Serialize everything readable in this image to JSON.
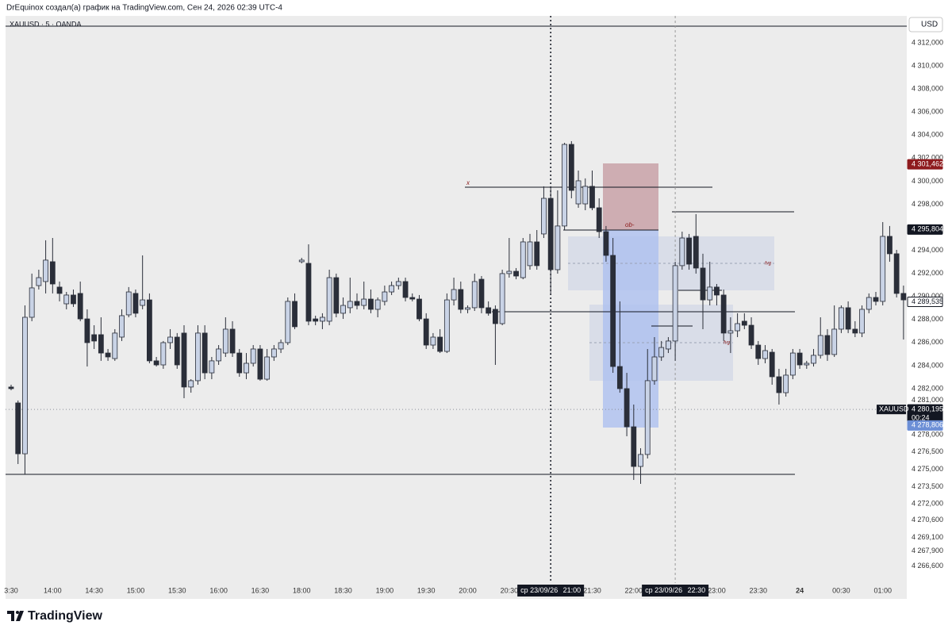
{
  "header": "DrEquinox создал(а) график на TradingView.com, Сен 24, 2026 02:39 UTC-4",
  "footer": "TradingView",
  "chart_data": {
    "type": "candlestick",
    "symbol": "XAUUSD · 5 · OANDA",
    "currency": "USD",
    "up_color": "#c9d3e6",
    "down_color": "#2a2e39",
    "grid": false,
    "ylim": [
      4263.76,
      4314.34
    ],
    "yticks": [
      {
        "value": 4312,
        "label": "4 312,000"
      },
      {
        "value": 4310,
        "label": "4 310,000"
      },
      {
        "value": 4308,
        "label": "4 308,000"
      },
      {
        "value": 4306,
        "label": "4 306,000"
      },
      {
        "value": 4304,
        "label": "4 304,000"
      },
      {
        "value": 4302,
        "label": "4 302,000"
      },
      {
        "value": 4300,
        "label": "4 300,000"
      },
      {
        "value": 4298,
        "label": "4 298,000"
      },
      {
        "value": 4294,
        "label": "4 294,000"
      },
      {
        "value": 4292,
        "label": "4 292,000"
      },
      {
        "value": 4290,
        "label": "4 290,000"
      },
      {
        "value": 4288,
        "label": "4 288,000"
      },
      {
        "value": 4286,
        "label": "4 286,000"
      },
      {
        "value": 4284,
        "label": "4 284,000"
      },
      {
        "value": 4282,
        "label": "4 282,000"
      },
      {
        "value": 4281,
        "label": "4 281,000"
      },
      {
        "value": 4278,
        "label": "4 278,000"
      },
      {
        "value": 4276.5,
        "label": "4 276,500"
      },
      {
        "value": 4275,
        "label": "4 275,000"
      },
      {
        "value": 4273.5,
        "label": "4 273,500"
      },
      {
        "value": 4272,
        "label": "4 272,000"
      },
      {
        "value": 4270.6,
        "label": "4 270,600"
      },
      {
        "value": 4269.1,
        "label": "4 269,100"
      },
      {
        "value": 4267.9,
        "label": "4 267,900"
      },
      {
        "value": 4266.6,
        "label": "4 266,600"
      }
    ],
    "price_labels": [
      {
        "value": 4301.462,
        "label": "4 301,462",
        "color": "#8e1b1e"
      },
      {
        "value": 4295.804,
        "label": "4 295,804",
        "color": "#131722"
      },
      {
        "value": 4289.535,
        "label": "4 289,535",
        "color": "#ffffff"
      },
      {
        "value": 4280.195,
        "label": "4 280,195",
        "color": "#131722"
      },
      {
        "value": 4278.806,
        "label": "4 278,806",
        "color": "#6c8fd6"
      }
    ],
    "last_price_symbol": "XAUUSD",
    "countdown": "00:24",
    "crosshairs": [
      {
        "date": "ср 23/09/26",
        "time": "21:00"
      },
      {
        "date": "ср 23/09/26",
        "time": "22:30"
      }
    ],
    "annotations": [
      "x",
      "ob-",
      "fvg",
      "fvg"
    ],
    "categories": [
      "3:30",
      null,
      null,
      null,
      null,
      null,
      "14:00",
      null,
      null,
      null,
      null,
      null,
      "14:30",
      null,
      null,
      null,
      null,
      null,
      "15:00",
      null,
      null,
      null,
      null,
      null,
      "15:30",
      null,
      null,
      null,
      null,
      null,
      "16:00",
      null,
      null,
      null,
      null,
      null,
      "16:30",
      null,
      null,
      null,
      null,
      null,
      "18:00",
      null,
      null,
      null,
      null,
      null,
      "18:30",
      null,
      null,
      null,
      null,
      null,
      "19:00",
      null,
      null,
      null,
      null,
      null,
      "19:30",
      null,
      null,
      null,
      null,
      null,
      "20:00",
      null,
      null,
      null,
      null,
      null,
      "20:30",
      null,
      null,
      null,
      null,
      null,
      null,
      null,
      null,
      null,
      null,
      null,
      "21:30",
      null,
      null,
      null,
      null,
      null,
      "22:00",
      null,
      null,
      null,
      null,
      null,
      null,
      null,
      null,
      null,
      null,
      null,
      "23:00",
      null,
      null,
      null,
      null,
      null,
      "23:30",
      null,
      null,
      null,
      null,
      null,
      "24",
      null,
      null,
      null,
      null,
      null,
      "00:30",
      null,
      null,
      null,
      null,
      null,
      "01:00",
      null,
      null,
      null
    ],
    "ohlc": [
      [
        4282.14,
        4282.34,
        4281.86,
        4282.0
      ],
      [
        4280.76,
        4280.97,
        4275.46,
        4276.35
      ],
      [
        4276.35,
        4289.22,
        4274.57,
        4288.19
      ],
      [
        4288.19,
        4291.98,
        4287.85,
        4290.74
      ],
      [
        4290.94,
        4292.32,
        4290.6,
        4291.63
      ],
      [
        4291.29,
        4294.87,
        4290.26,
        4293.15
      ],
      [
        4293.01,
        4295.07,
        4290.26,
        4291.08
      ],
      [
        4290.81,
        4291.29,
        4289.57,
        4290.26
      ],
      [
        4289.36,
        4290.39,
        4288.88,
        4290.12
      ],
      [
        4290.12,
        4290.6,
        4289.09,
        4289.36
      ],
      [
        4290.26,
        4291.29,
        4287.85,
        4288.05
      ],
      [
        4288.05,
        4288.88,
        4283.92,
        4285.99
      ],
      [
        4286.68,
        4287.5,
        4285.44,
        4286.13
      ],
      [
        4286.68,
        4288.19,
        4284.41,
        4285.09
      ],
      [
        4285.09,
        4285.44,
        4284.41,
        4284.75
      ],
      [
        4284.61,
        4287.16,
        4284.41,
        4286.82
      ],
      [
        4286.47,
        4288.88,
        4286.13,
        4288.33
      ],
      [
        4288.4,
        4290.81,
        4288.19,
        4290.39
      ],
      [
        4290.26,
        4290.6,
        4288.19,
        4288.54
      ],
      [
        4289.22,
        4293.56,
        4288.88,
        4289.7
      ],
      [
        4289.7,
        4290.26,
        4284.2,
        4284.41
      ],
      [
        4284.41,
        4284.75,
        4283.92,
        4284.06
      ],
      [
        4284.06,
        4286.13,
        4283.72,
        4285.99
      ],
      [
        4285.99,
        4287.16,
        4285.44,
        4286.47
      ],
      [
        4286.47,
        4286.82,
        4283.72,
        4284.06
      ],
      [
        4286.82,
        4287.5,
        4281.17,
        4282.14
      ],
      [
        4282.14,
        4282.82,
        4281.65,
        4282.69
      ],
      [
        4282.69,
        4287.5,
        4282.34,
        4286.82
      ],
      [
        4286.82,
        4287.5,
        4282.82,
        4283.37
      ],
      [
        4283.37,
        4284.75,
        4282.82,
        4284.41
      ],
      [
        4284.41,
        4285.78,
        4284.06,
        4285.44
      ],
      [
        4285.09,
        4288.19,
        4284.75,
        4287.16
      ],
      [
        4287.16,
        4287.85,
        4284.75,
        4285.09
      ],
      [
        4285.09,
        4285.44,
        4283.03,
        4283.37
      ],
      [
        4283.37,
        4285.09,
        4282.82,
        4284.2
      ],
      [
        4284.2,
        4285.78,
        4283.92,
        4285.44
      ],
      [
        4285.44,
        4285.78,
        4282.69,
        4282.82
      ],
      [
        4282.82,
        4285.44,
        4282.69,
        4284.75
      ],
      [
        4284.75,
        4285.78,
        4284.41,
        4285.44
      ],
      [
        4285.44,
        4286.26,
        4285.09,
        4285.99
      ],
      [
        4285.99,
        4289.91,
        4285.78,
        4289.57
      ],
      [
        4289.57,
        4290.26,
        4287.16,
        4287.37
      ],
      [
        4293.01,
        4293.35,
        4292.87,
        4293.15
      ],
      [
        4292.87,
        4294.52,
        4287.5,
        4287.85
      ],
      [
        4288.05,
        4288.33,
        4287.5,
        4287.85
      ],
      [
        4287.85,
        4288.54,
        4287.16,
        4288.19
      ],
      [
        4287.85,
        4292.32,
        4287.5,
        4291.63
      ],
      [
        4291.63,
        4291.98,
        4288.19,
        4288.54
      ],
      [
        4288.54,
        4289.91,
        4288.05,
        4289.22
      ],
      [
        4289.02,
        4291.63,
        4288.54,
        4289.57
      ],
      [
        4289.57,
        4290.26,
        4288.88,
        4289.22
      ],
      [
        4289.22,
        4291.29,
        4288.88,
        4289.77
      ],
      [
        4289.77,
        4290.6,
        4288.54,
        4288.88
      ],
      [
        4288.88,
        4289.91,
        4288.19,
        4289.7
      ],
      [
        4289.57,
        4290.94,
        4289.22,
        4290.39
      ],
      [
        4290.39,
        4291.29,
        4290.12,
        4290.94
      ],
      [
        4290.94,
        4291.63,
        4290.6,
        4291.29
      ],
      [
        4291.29,
        4291.63,
        4289.57,
        4289.91
      ],
      [
        4289.91,
        4290.26,
        4289.57,
        4289.77
      ],
      [
        4289.77,
        4290.12,
        4287.85,
        4288.05
      ],
      [
        4288.05,
        4288.54,
        4285.44,
        4285.78
      ],
      [
        4285.78,
        4286.82,
        4285.44,
        4286.47
      ],
      [
        4286.47,
        4287.16,
        4285.09,
        4285.23
      ],
      [
        4285.23,
        4290.26,
        4285.09,
        4289.7
      ],
      [
        4289.7,
        4291.63,
        4289.22,
        4290.6
      ],
      [
        4290.6,
        4291.29,
        4288.54,
        4288.88
      ],
      [
        4288.88,
        4289.22,
        4288.54,
        4289.02
      ],
      [
        4289.02,
        4291.98,
        4288.74,
        4291.29
      ],
      [
        4291.49,
        4291.77,
        4288.54,
        4289.02
      ],
      [
        4289.02,
        4289.57,
        4288.33,
        4288.54
      ],
      [
        4288.88,
        4289.22,
        4284.06,
        4287.64
      ],
      [
        4287.64,
        4292.32,
        4287.5,
        4291.98
      ],
      [
        4291.98,
        4295.07,
        4291.63,
        4292.18
      ],
      [
        4292.18,
        4292.46,
        4291.49,
        4291.77
      ],
      [
        4291.63,
        4295.07,
        4291.49,
        4294.73
      ],
      [
        4292.67,
        4295.42,
        4292.32,
        4294.73
      ],
      [
        4294.73,
        4295.76,
        4292.32,
        4292.67
      ],
      [
        4295.42,
        4299.55,
        4295.07,
        4298.51
      ],
      [
        4298.51,
        4299.55,
        4290.26,
        4292.32
      ],
      [
        4292.32,
        4299.2,
        4291.98,
        4296.11
      ],
      [
        4296.11,
        4303.33,
        4295.76,
        4303.19
      ],
      [
        4303.19,
        4303.47,
        4298.51,
        4299.2
      ],
      [
        4298.03,
        4300.92,
        4297.69,
        4300.03
      ],
      [
        4298.03,
        4300.24,
        4297.48,
        4299.55
      ],
      [
        4299.55,
        4300.92,
        4297.48,
        4297.69
      ],
      [
        4297.69,
        4298.51,
        4295.07,
        4295.62
      ],
      [
        4295.62,
        4296.11,
        4293.01,
        4293.56
      ],
      [
        4293.56,
        4295.07,
        4283.37,
        4283.92
      ],
      [
        4283.92,
        4289.57,
        4281.65,
        4282.0
      ],
      [
        4282.0,
        4283.37,
        4277.87,
        4278.69
      ],
      [
        4278.69,
        4280.62,
        4274.08,
        4275.25
      ],
      [
        4275.25,
        4276.83,
        4273.74,
        4276.29
      ],
      [
        4276.29,
        4285.44,
        4275.94,
        4282.69
      ],
      [
        4282.69,
        4286.47,
        4282.34,
        4284.75
      ],
      [
        4284.75,
        4286.13,
        4284.41,
        4285.57
      ],
      [
        4285.44,
        4286.47,
        4285.09,
        4286.13
      ],
      [
        4286.13,
        4293.01,
        4284.41,
        4292.67
      ],
      [
        4292.67,
        4295.62,
        4292.32,
        4295.07
      ],
      [
        4295.07,
        4295.42,
        4292.32,
        4292.8
      ],
      [
        4295.21,
        4297.14,
        4291.98,
        4292.46
      ],
      [
        4292.46,
        4293.7,
        4287.16,
        4289.7
      ],
      [
        4289.7,
        4293.01,
        4289.22,
        4290.81
      ],
      [
        4290.81,
        4291.08,
        4289.22,
        4290.12
      ],
      [
        4290.12,
        4290.6,
        4286.13,
        4286.82
      ],
      [
        4286.82,
        4288.19,
        4285.09,
        4287.02
      ],
      [
        4287.02,
        4288.54,
        4286.47,
        4287.64
      ],
      [
        4287.85,
        4288.54,
        4287.16,
        4287.5
      ],
      [
        4287.5,
        4288.19,
        4285.44,
        4285.78
      ],
      [
        4285.78,
        4286.13,
        4284.06,
        4284.61
      ],
      [
        4284.61,
        4285.78,
        4284.2,
        4285.3
      ],
      [
        4285.16,
        4285.44,
        4282.34,
        4283.03
      ],
      [
        4283.03,
        4283.72,
        4280.62,
        4281.65
      ],
      [
        4281.65,
        4283.72,
        4281.31,
        4283.17
      ],
      [
        4283.17,
        4285.44,
        4282.82,
        4285.09
      ],
      [
        4285.09,
        4285.44,
        4283.72,
        4284.06
      ],
      [
        4284.06,
        4284.41,
        4283.72,
        4284.2
      ],
      [
        4284.2,
        4285.44,
        4283.92,
        4284.89
      ],
      [
        4284.89,
        4288.19,
        4284.61,
        4286.61
      ],
      [
        4286.61,
        4287.16,
        4284.41,
        4284.96
      ],
      [
        4284.96,
        4289.22,
        4284.75,
        4287.16
      ],
      [
        4287.16,
        4289.22,
        4286.82,
        4289.02
      ],
      [
        4289.02,
        4289.57,
        4286.82,
        4287.16
      ],
      [
        4287.16,
        4287.85,
        4286.47,
        4286.82
      ],
      [
        4286.82,
        4289.22,
        4286.47,
        4288.88
      ],
      [
        4288.88,
        4290.26,
        4288.54,
        4289.91
      ],
      [
        4289.91,
        4290.39,
        4289.22,
        4289.57
      ],
      [
        4289.57,
        4296.45,
        4289.22,
        4295.21
      ],
      [
        4295.21,
        4296.11,
        4293.01,
        4293.7
      ],
      [
        4293.7,
        4294.04,
        4289.91,
        4290.26
      ],
      [
        4290.26,
        4290.94,
        4286.26,
        4289.7
      ]
    ]
  }
}
